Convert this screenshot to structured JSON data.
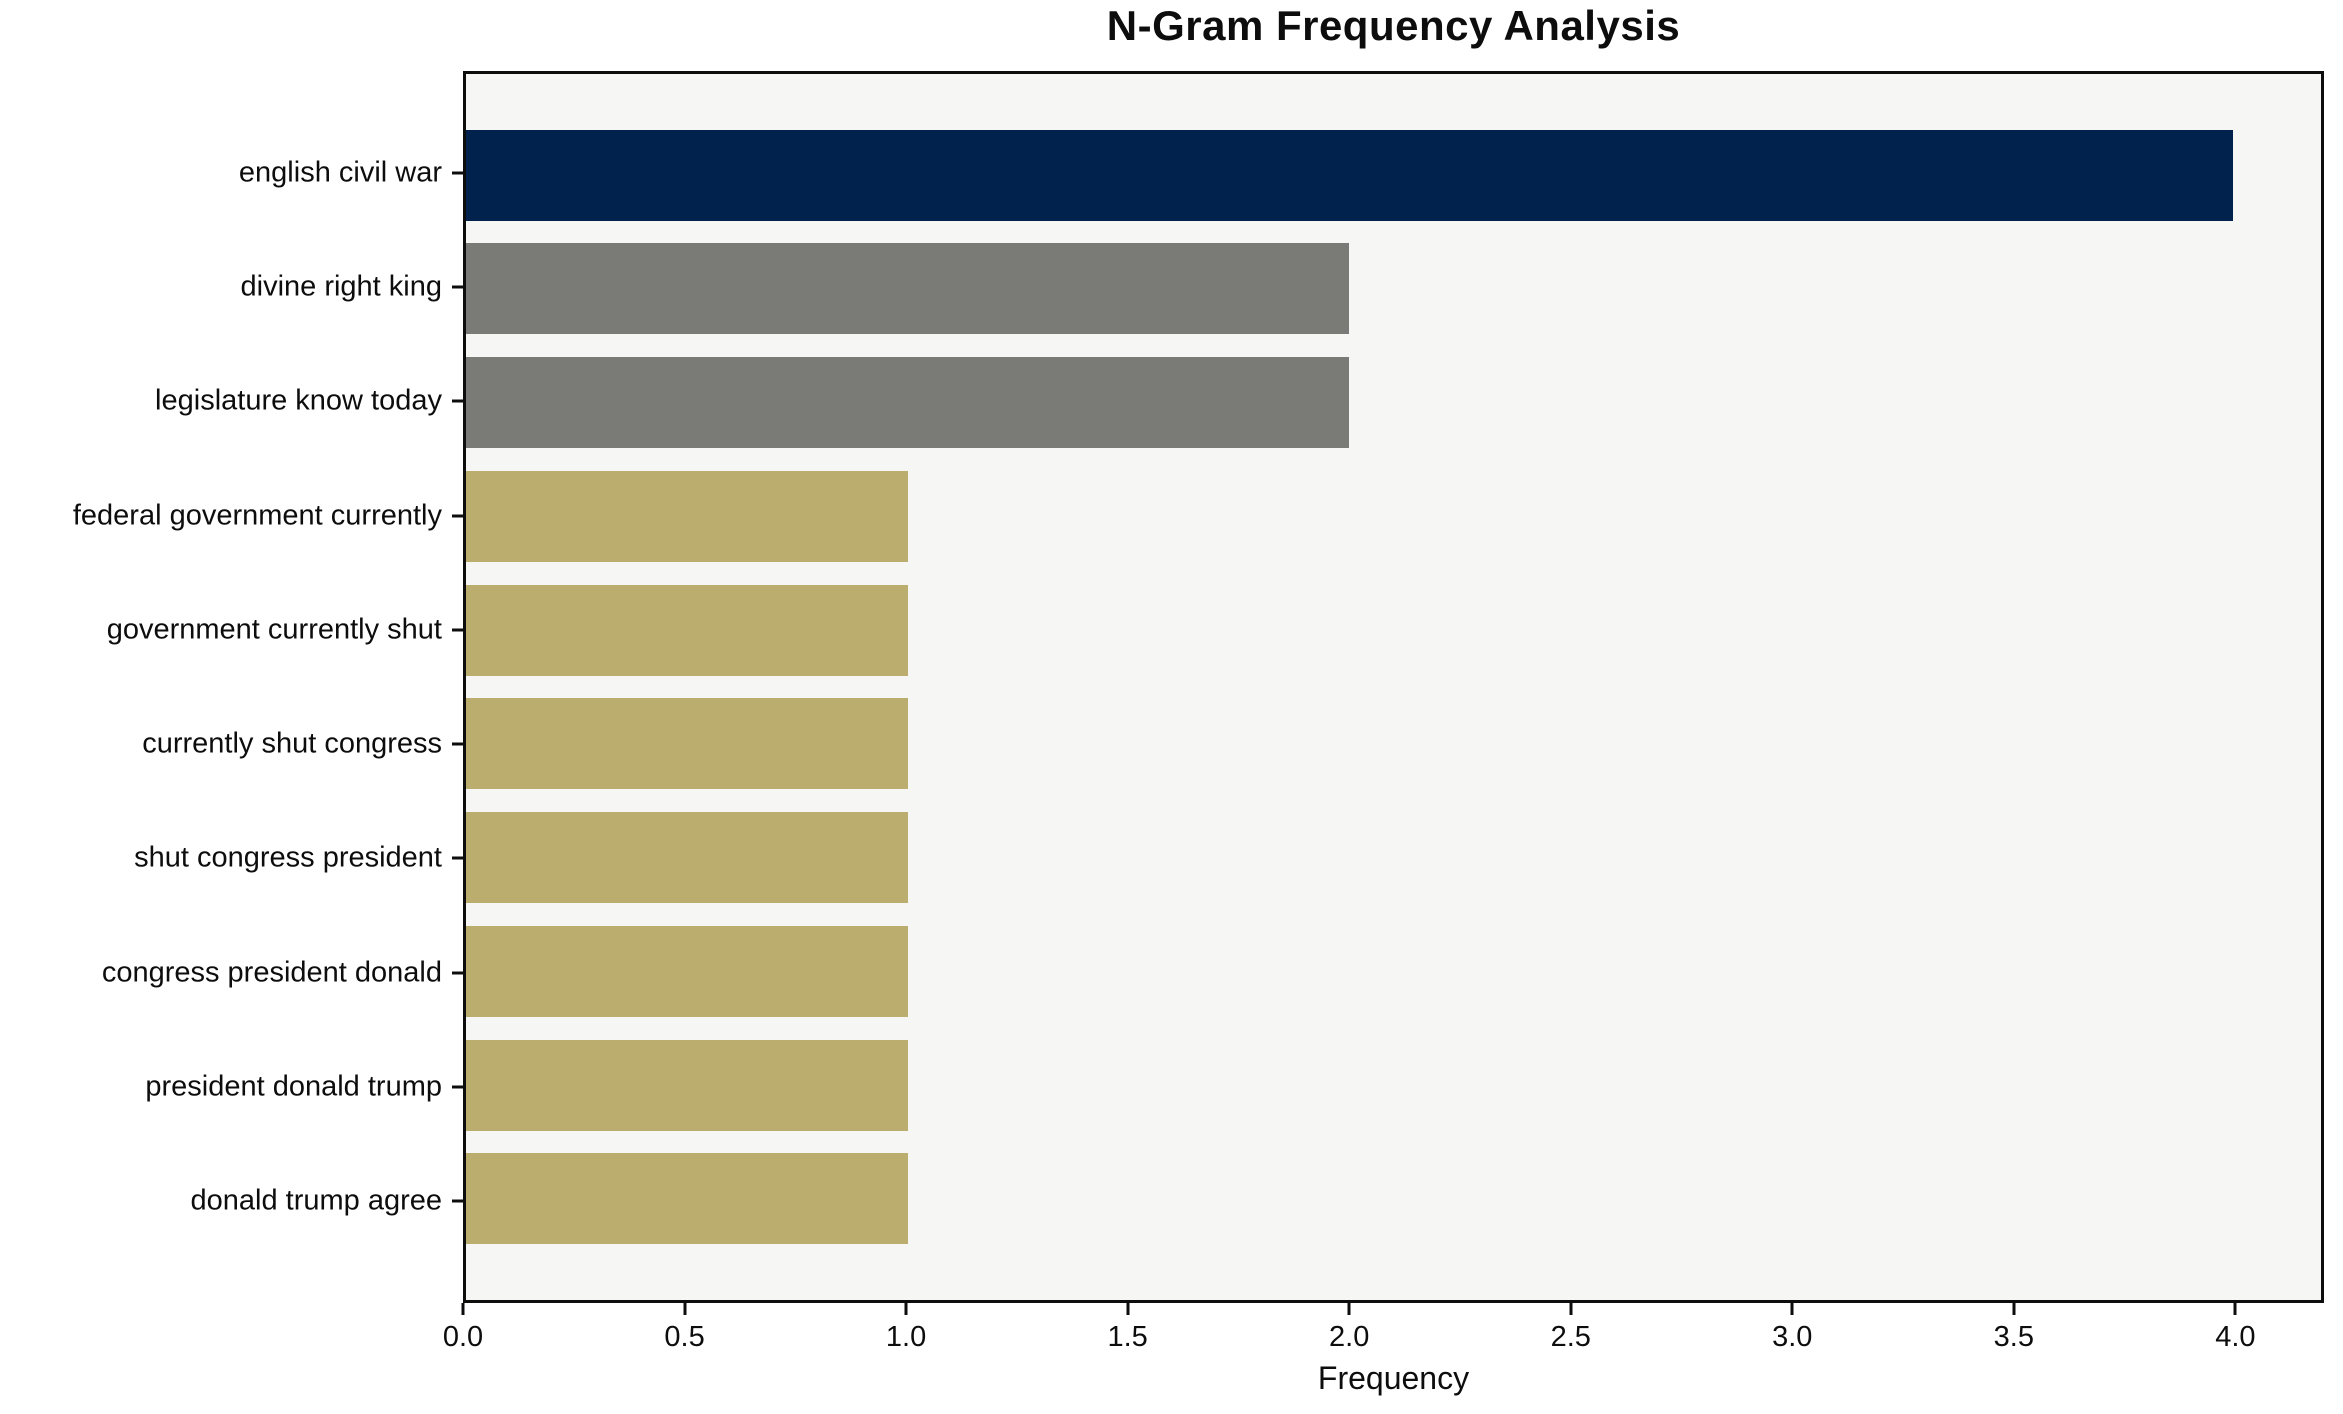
{
  "chart_data": {
    "type": "bar",
    "orientation": "horizontal",
    "title": "N-Gram Frequency Analysis",
    "xlabel": "Frequency",
    "ylabel": "",
    "categories": [
      "english civil war",
      "divine right king",
      "legislature know today",
      "federal government currently",
      "government currently shut",
      "currently shut congress",
      "shut congress president",
      "congress president donald",
      "president donald trump",
      "donald trump agree"
    ],
    "values": [
      4,
      2,
      2,
      1,
      1,
      1,
      1,
      1,
      1,
      1
    ],
    "bar_colors": [
      "#01224c",
      "#7a7a76",
      "#7a7a76",
      "#bbad6e",
      "#bbad6e",
      "#bbad6e",
      "#bbad6e",
      "#bbad6e",
      "#bbad6e",
      "#bbad6e"
    ],
    "xlim": [
      0,
      4.2
    ],
    "xticks": [
      {
        "value": 0.0,
        "label": "0.0"
      },
      {
        "value": 0.5,
        "label": "0.5"
      },
      {
        "value": 1.0,
        "label": "1.0"
      },
      {
        "value": 1.5,
        "label": "1.5"
      },
      {
        "value": 2.0,
        "label": "2.0"
      },
      {
        "value": 2.5,
        "label": "2.5"
      },
      {
        "value": 3.0,
        "label": "3.0"
      },
      {
        "value": 3.5,
        "label": "3.5"
      },
      {
        "value": 4.0,
        "label": "4.0"
      }
    ],
    "grid": false,
    "legend": false,
    "colors": {
      "plot_background": "#f6f6f5",
      "figure_background": "#ffffff",
      "spine": "#0d0d0d",
      "text": "#0d0d0d"
    }
  }
}
